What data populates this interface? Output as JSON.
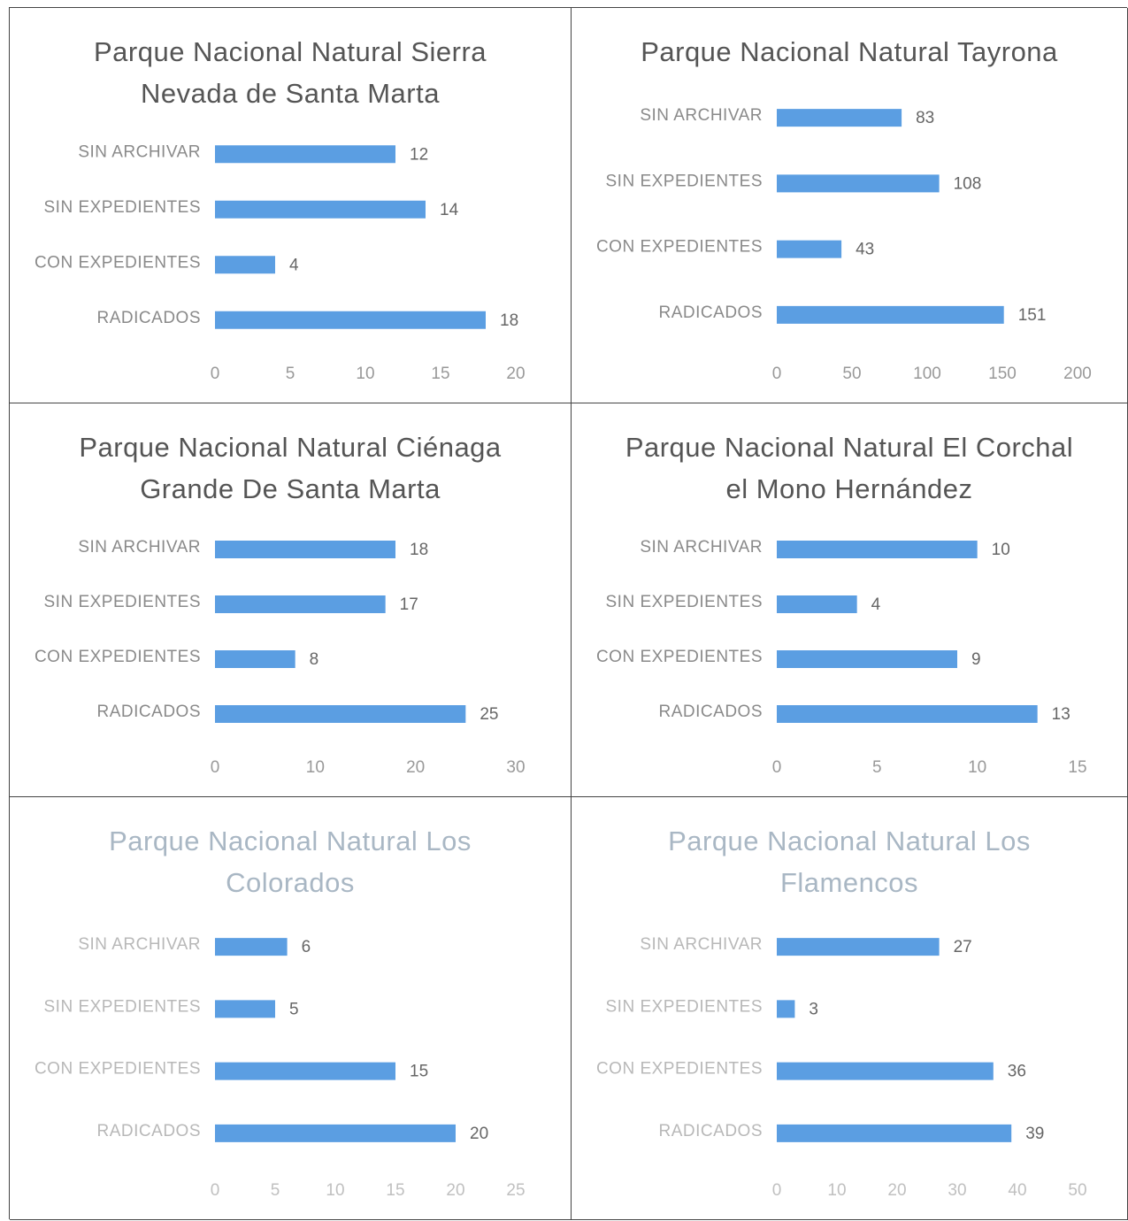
{
  "chart_data": [
    {
      "type": "barh",
      "title": "Parque Nacional Natural Sierra Nevada de Santa Marta",
      "categories": [
        "SIN ARCHIVAR",
        "SIN EXPEDIENTES",
        "CON EXPEDIENTES",
        "RADICADOS"
      ],
      "values": [
        12,
        14,
        4,
        18
      ],
      "color": "#5b9ee2",
      "xlim": [
        0,
        20
      ],
      "xticks": [
        0,
        5,
        10,
        15,
        20
      ]
    },
    {
      "type": "barh",
      "title": "Parque Nacional Natural Tayrona",
      "categories": [
        "SIN ARCHIVAR",
        "SIN EXPEDIENTES",
        "CON EXPEDIENTES",
        "RADICADOS"
      ],
      "values": [
        83,
        108,
        43,
        151
      ],
      "color": "#5b9ee2",
      "xlim": [
        0,
        200
      ],
      "xticks": [
        0,
        50,
        100,
        150,
        200
      ]
    },
    {
      "type": "barh",
      "title": "Parque Nacional Natural Ciénaga Grande De Santa Marta",
      "categories": [
        "SIN ARCHIVAR",
        "SIN EXPEDIENTES",
        "CON EXPEDIENTES",
        "RADICADOS"
      ],
      "values": [
        18,
        17,
        8,
        25
      ],
      "color": "#5b9ee2",
      "xlim": [
        0,
        30
      ],
      "xticks": [
        0,
        10,
        20,
        30
      ]
    },
    {
      "type": "barh",
      "title": "Parque Nacional Natural El Corchal el Mono Hernández",
      "categories": [
        "SIN ARCHIVAR",
        "SIN EXPEDIENTES",
        "CON EXPEDIENTES",
        "RADICADOS"
      ],
      "values": [
        10,
        4,
        9,
        13
      ],
      "color": "#5b9ee2",
      "xlim": [
        0,
        15
      ],
      "xticks": [
        0,
        5,
        10,
        15
      ]
    },
    {
      "type": "barh",
      "title": "Parque Nacional Natural Los Colorados",
      "categories": [
        "SIN ARCHIVAR",
        "SIN EXPEDIENTES",
        "CON EXPEDIENTES",
        "RADICADOS"
      ],
      "values": [
        6,
        5,
        15,
        20
      ],
      "color": "#5b9ee2",
      "xlim": [
        0,
        25
      ],
      "xticks": [
        0,
        5,
        10,
        15,
        20,
        25
      ]
    },
    {
      "type": "barh",
      "title": "Parque Nacional Natural Los Flamencos",
      "categories": [
        "SIN ARCHIVAR",
        "SIN EXPEDIENTES",
        "CON EXPEDIENTES",
        "RADICADOS"
      ],
      "values": [
        27,
        3,
        36,
        39
      ],
      "color": "#5b9ee2",
      "xlim": [
        0,
        50
      ],
      "xticks": [
        0,
        10,
        20,
        30,
        40,
        50
      ]
    }
  ]
}
